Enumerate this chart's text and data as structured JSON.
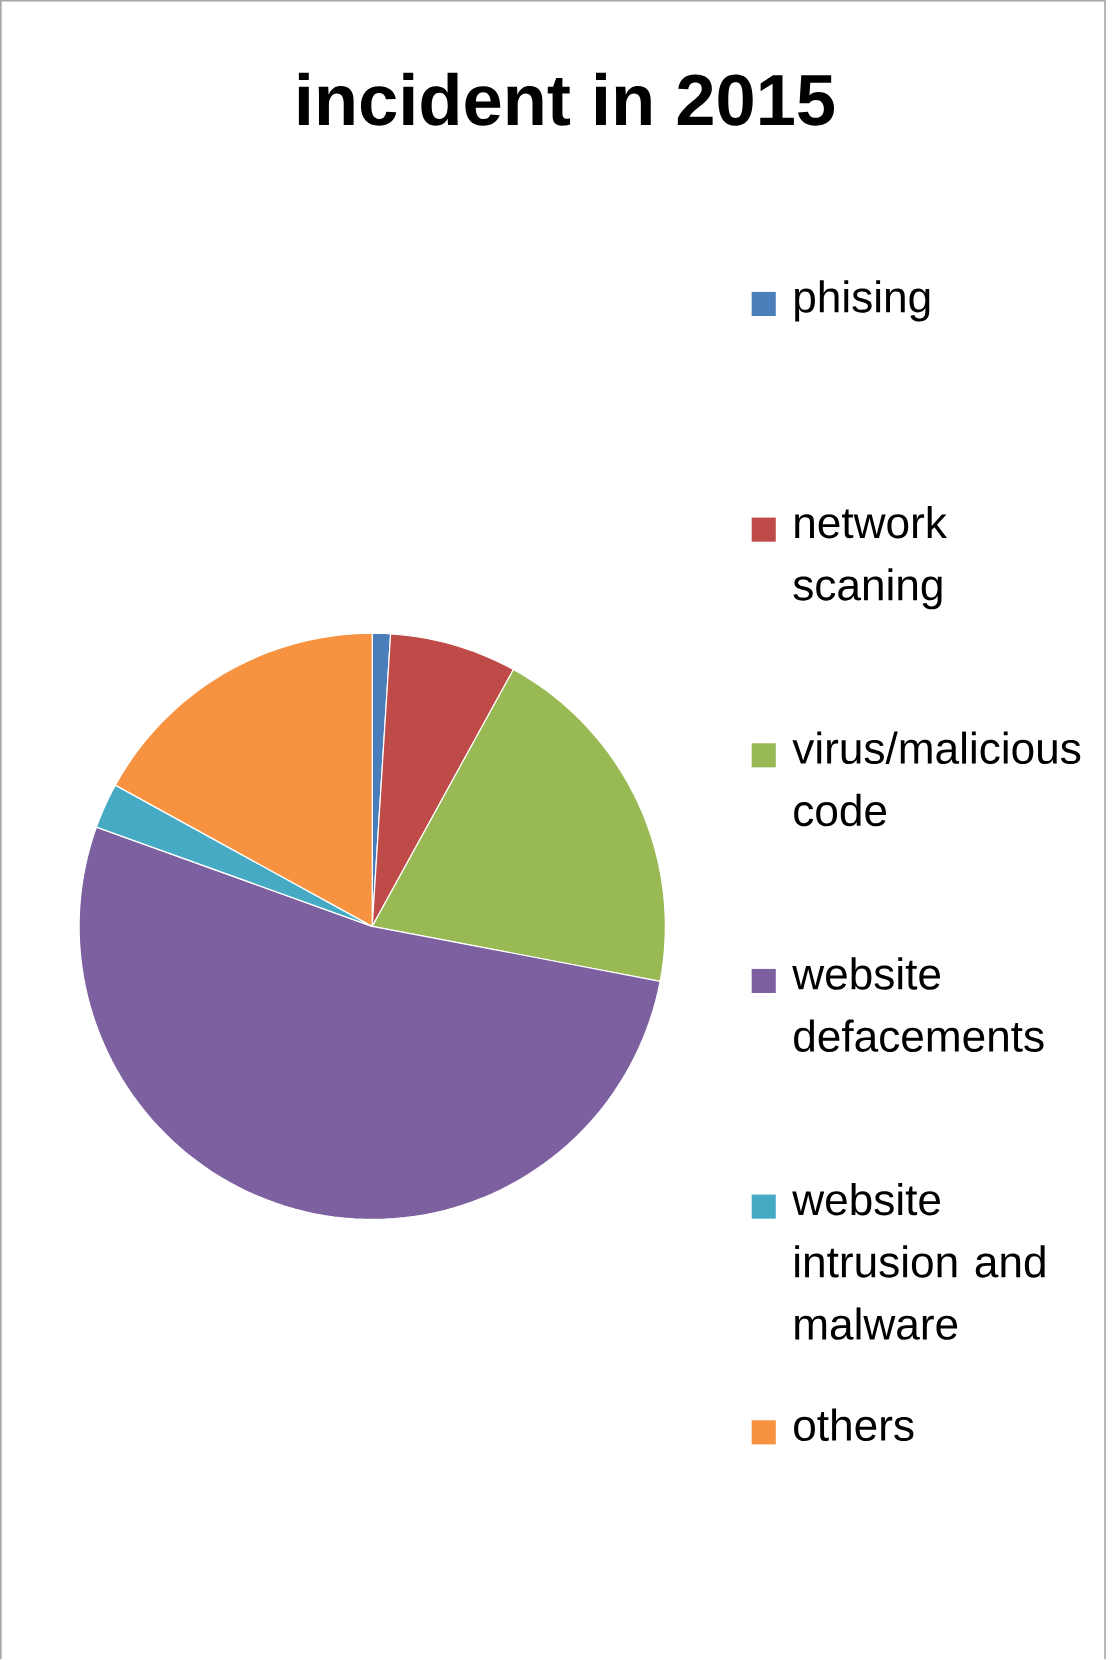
{
  "chart_data": {
    "type": "pie",
    "title": "incident in 2015",
    "categories": [
      "phising",
      "network scaning",
      "virus/malicious code",
      "website defacements",
      "website intrusion and malware",
      "others"
    ],
    "values": [
      1,
      7,
      20,
      52.5,
      2.5,
      17
    ],
    "colors": [
      "#4a7ebb",
      "#be4b48",
      "#98b954",
      "#7d60a0",
      "#46aac5",
      "#f69240"
    ],
    "legend": "right"
  }
}
